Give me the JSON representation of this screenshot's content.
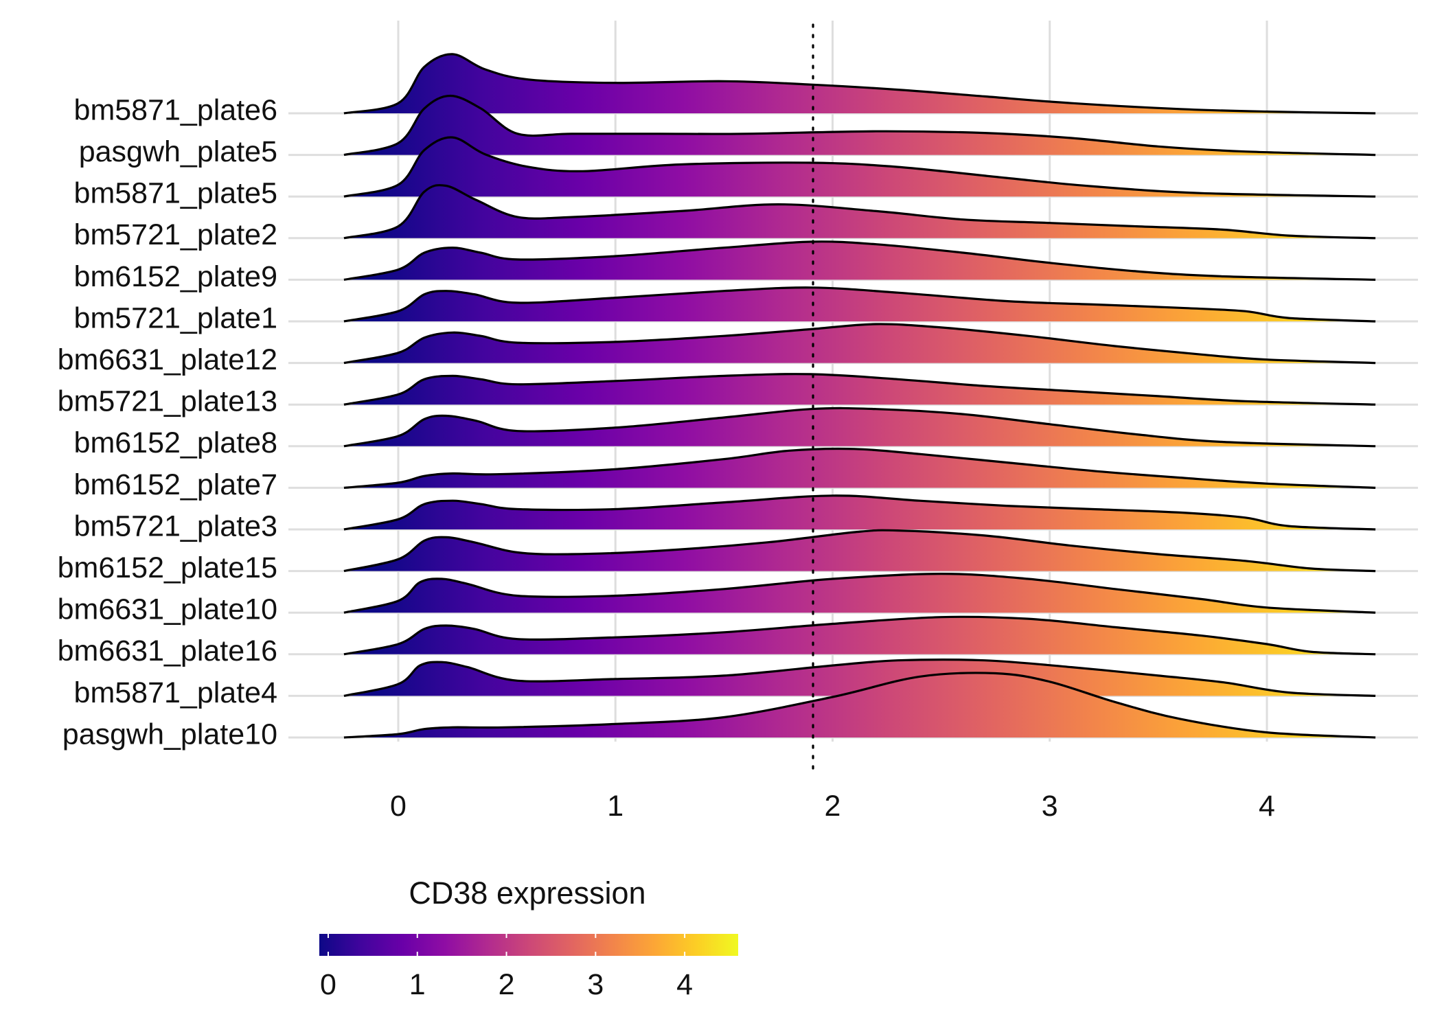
{
  "chart_data": {
    "type": "ridgeline",
    "xlim": [
      -0.25,
      4.5
    ],
    "x_ticks": [
      "0",
      "1",
      "2",
      "3",
      "4"
    ],
    "grid": "vertical + row baselines",
    "reference_line": {
      "x": 1.91,
      "style": "dotted"
    },
    "fill_palette": [
      "#0d0887",
      "#41049d",
      "#6a00a8",
      "#8f0da4",
      "#b12a90",
      "#cc4778",
      "#e16462",
      "#f2844b",
      "#fca636",
      "#fcce25",
      "#f0f921"
    ],
    "legend": {
      "title": "CD38 expression",
      "placement": "bottom",
      "range": [
        -0.1,
        4.6
      ],
      "ticks": [
        "0",
        "1",
        "2",
        "3",
        "4"
      ]
    },
    "series": [
      {
        "name": "bm5871_plate6",
        "points": [
          [
            -0.25,
            0
          ],
          [
            0,
            0.12
          ],
          [
            0.12,
            0.55
          ],
          [
            0.25,
            0.7
          ],
          [
            0.4,
            0.52
          ],
          [
            0.6,
            0.4
          ],
          [
            1.0,
            0.36
          ],
          [
            1.5,
            0.38
          ],
          [
            1.9,
            0.34
          ],
          [
            2.3,
            0.28
          ],
          [
            2.7,
            0.2
          ],
          [
            3.1,
            0.12
          ],
          [
            3.6,
            0.05
          ],
          [
            4.0,
            0.02
          ],
          [
            4.5,
            0.0
          ]
        ]
      },
      {
        "name": "pasgwh_plate5",
        "points": [
          [
            -0.25,
            0
          ],
          [
            0,
            0.14
          ],
          [
            0.12,
            0.55
          ],
          [
            0.24,
            0.7
          ],
          [
            0.38,
            0.55
          ],
          [
            0.55,
            0.25
          ],
          [
            0.8,
            0.25
          ],
          [
            1.2,
            0.25
          ],
          [
            1.6,
            0.25
          ],
          [
            2.2,
            0.28
          ],
          [
            2.7,
            0.26
          ],
          [
            3.1,
            0.2
          ],
          [
            3.5,
            0.1
          ],
          [
            3.9,
            0.04
          ],
          [
            4.5,
            0.0
          ]
        ]
      },
      {
        "name": "bm5871_plate5",
        "points": [
          [
            -0.25,
            0
          ],
          [
            0,
            0.14
          ],
          [
            0.12,
            0.55
          ],
          [
            0.25,
            0.7
          ],
          [
            0.4,
            0.5
          ],
          [
            0.6,
            0.35
          ],
          [
            0.85,
            0.3
          ],
          [
            1.3,
            0.38
          ],
          [
            1.9,
            0.4
          ],
          [
            2.3,
            0.35
          ],
          [
            2.8,
            0.22
          ],
          [
            3.2,
            0.12
          ],
          [
            3.7,
            0.04
          ],
          [
            4.5,
            0.0
          ]
        ]
      },
      {
        "name": "bm5721_plate2",
        "points": [
          [
            -0.25,
            0
          ],
          [
            0,
            0.14
          ],
          [
            0.12,
            0.55
          ],
          [
            0.22,
            0.62
          ],
          [
            0.36,
            0.45
          ],
          [
            0.55,
            0.25
          ],
          [
            0.8,
            0.25
          ],
          [
            1.3,
            0.32
          ],
          [
            1.75,
            0.4
          ],
          [
            2.2,
            0.32
          ],
          [
            2.6,
            0.22
          ],
          [
            3.0,
            0.18
          ],
          [
            3.4,
            0.14
          ],
          [
            3.8,
            0.1
          ],
          [
            4.1,
            0.03
          ],
          [
            4.5,
            0.0
          ]
        ]
      },
      {
        "name": "bm6152_plate9",
        "points": [
          [
            -0.25,
            0
          ],
          [
            0,
            0.12
          ],
          [
            0.12,
            0.32
          ],
          [
            0.25,
            0.38
          ],
          [
            0.38,
            0.32
          ],
          [
            0.55,
            0.24
          ],
          [
            1.0,
            0.28
          ],
          [
            1.5,
            0.38
          ],
          [
            1.9,
            0.45
          ],
          [
            2.2,
            0.42
          ],
          [
            2.6,
            0.32
          ],
          [
            3.0,
            0.2
          ],
          [
            3.4,
            0.1
          ],
          [
            3.8,
            0.04
          ],
          [
            4.5,
            0.0
          ]
        ]
      },
      {
        "name": "bm5721_plate1",
        "points": [
          [
            -0.25,
            0
          ],
          [
            0,
            0.12
          ],
          [
            0.12,
            0.32
          ],
          [
            0.22,
            0.36
          ],
          [
            0.35,
            0.32
          ],
          [
            0.55,
            0.22
          ],
          [
            1.0,
            0.28
          ],
          [
            1.5,
            0.36
          ],
          [
            1.9,
            0.4
          ],
          [
            2.3,
            0.34
          ],
          [
            2.8,
            0.24
          ],
          [
            3.2,
            0.2
          ],
          [
            3.6,
            0.16
          ],
          [
            3.9,
            0.12
          ],
          [
            4.1,
            0.04
          ],
          [
            4.5,
            0.0
          ]
        ]
      },
      {
        "name": "bm6631_plate12",
        "points": [
          [
            -0.25,
            0
          ],
          [
            0,
            0.12
          ],
          [
            0.12,
            0.3
          ],
          [
            0.25,
            0.36
          ],
          [
            0.38,
            0.32
          ],
          [
            0.55,
            0.24
          ],
          [
            1.0,
            0.25
          ],
          [
            1.5,
            0.32
          ],
          [
            1.9,
            0.4
          ],
          [
            2.2,
            0.46
          ],
          [
            2.5,
            0.42
          ],
          [
            2.9,
            0.32
          ],
          [
            3.3,
            0.2
          ],
          [
            3.7,
            0.1
          ],
          [
            4.0,
            0.04
          ],
          [
            4.5,
            0.0
          ]
        ]
      },
      {
        "name": "bm5721_plate13",
        "points": [
          [
            -0.25,
            0
          ],
          [
            0,
            0.12
          ],
          [
            0.12,
            0.3
          ],
          [
            0.25,
            0.34
          ],
          [
            0.38,
            0.3
          ],
          [
            0.55,
            0.24
          ],
          [
            1.0,
            0.28
          ],
          [
            1.5,
            0.34
          ],
          [
            1.9,
            0.36
          ],
          [
            2.3,
            0.3
          ],
          [
            2.7,
            0.22
          ],
          [
            3.1,
            0.16
          ],
          [
            3.5,
            0.1
          ],
          [
            3.9,
            0.04
          ],
          [
            4.5,
            0.0
          ]
        ]
      },
      {
        "name": "bm6152_plate8",
        "points": [
          [
            -0.25,
            0
          ],
          [
            0,
            0.12
          ],
          [
            0.12,
            0.32
          ],
          [
            0.22,
            0.36
          ],
          [
            0.36,
            0.3
          ],
          [
            0.55,
            0.18
          ],
          [
            1.0,
            0.22
          ],
          [
            1.5,
            0.34
          ],
          [
            1.9,
            0.44
          ],
          [
            2.2,
            0.44
          ],
          [
            2.6,
            0.38
          ],
          [
            3.0,
            0.26
          ],
          [
            3.4,
            0.14
          ],
          [
            3.8,
            0.05
          ],
          [
            4.5,
            0.0
          ]
        ]
      },
      {
        "name": "bm6152_plate7",
        "points": [
          [
            -0.25,
            0
          ],
          [
            0,
            0.06
          ],
          [
            0.12,
            0.14
          ],
          [
            0.25,
            0.17
          ],
          [
            0.45,
            0.16
          ],
          [
            1.0,
            0.22
          ],
          [
            1.5,
            0.34
          ],
          [
            1.8,
            0.44
          ],
          [
            2.1,
            0.46
          ],
          [
            2.4,
            0.4
          ],
          [
            2.8,
            0.3
          ],
          [
            3.2,
            0.2
          ],
          [
            3.6,
            0.12
          ],
          [
            4.0,
            0.05
          ],
          [
            4.5,
            0.0
          ]
        ]
      },
      {
        "name": "bm5721_plate3",
        "points": [
          [
            -0.25,
            0
          ],
          [
            0,
            0.12
          ],
          [
            0.12,
            0.3
          ],
          [
            0.25,
            0.34
          ],
          [
            0.38,
            0.3
          ],
          [
            0.55,
            0.24
          ],
          [
            1.0,
            0.24
          ],
          [
            1.5,
            0.32
          ],
          [
            2.0,
            0.4
          ],
          [
            2.4,
            0.34
          ],
          [
            2.8,
            0.28
          ],
          [
            3.2,
            0.24
          ],
          [
            3.6,
            0.2
          ],
          [
            3.9,
            0.14
          ],
          [
            4.1,
            0.04
          ],
          [
            4.5,
            0.0
          ]
        ]
      },
      {
        "name": "bm6152_plate15",
        "points": [
          [
            -0.25,
            0
          ],
          [
            0,
            0.14
          ],
          [
            0.12,
            0.36
          ],
          [
            0.22,
            0.4
          ],
          [
            0.35,
            0.34
          ],
          [
            0.55,
            0.22
          ],
          [
            0.8,
            0.2
          ],
          [
            1.2,
            0.24
          ],
          [
            1.7,
            0.34
          ],
          [
            2.1,
            0.46
          ],
          [
            2.3,
            0.48
          ],
          [
            2.7,
            0.42
          ],
          [
            3.1,
            0.3
          ],
          [
            3.5,
            0.2
          ],
          [
            3.9,
            0.12
          ],
          [
            4.2,
            0.03
          ],
          [
            4.5,
            0.0
          ]
        ]
      },
      {
        "name": "bm6631_plate10",
        "points": [
          [
            -0.25,
            0
          ],
          [
            0,
            0.14
          ],
          [
            0.1,
            0.36
          ],
          [
            0.2,
            0.4
          ],
          [
            0.32,
            0.34
          ],
          [
            0.55,
            0.2
          ],
          [
            1.0,
            0.2
          ],
          [
            1.5,
            0.28
          ],
          [
            2.0,
            0.4
          ],
          [
            2.5,
            0.46
          ],
          [
            2.9,
            0.4
          ],
          [
            3.3,
            0.28
          ],
          [
            3.7,
            0.16
          ],
          [
            4.0,
            0.06
          ],
          [
            4.5,
            0.0
          ]
        ]
      },
      {
        "name": "bm6631_plate16",
        "points": [
          [
            -0.25,
            0
          ],
          [
            0,
            0.12
          ],
          [
            0.12,
            0.3
          ],
          [
            0.22,
            0.34
          ],
          [
            0.35,
            0.3
          ],
          [
            0.55,
            0.18
          ],
          [
            1.0,
            0.2
          ],
          [
            1.5,
            0.26
          ],
          [
            2.0,
            0.36
          ],
          [
            2.5,
            0.44
          ],
          [
            2.9,
            0.42
          ],
          [
            3.3,
            0.32
          ],
          [
            3.7,
            0.22
          ],
          [
            4.0,
            0.12
          ],
          [
            4.2,
            0.03
          ],
          [
            4.5,
            0.0
          ]
        ]
      },
      {
        "name": "bm5871_plate4",
        "points": [
          [
            -0.25,
            0
          ],
          [
            0,
            0.14
          ],
          [
            0.1,
            0.36
          ],
          [
            0.2,
            0.4
          ],
          [
            0.32,
            0.34
          ],
          [
            0.55,
            0.18
          ],
          [
            1.0,
            0.2
          ],
          [
            1.5,
            0.24
          ],
          [
            2.0,
            0.36
          ],
          [
            2.3,
            0.42
          ],
          [
            2.7,
            0.42
          ],
          [
            3.1,
            0.34
          ],
          [
            3.5,
            0.24
          ],
          [
            3.8,
            0.16
          ],
          [
            4.1,
            0.04
          ],
          [
            4.5,
            0.0
          ]
        ]
      },
      {
        "name": "pasgwh_plate10",
        "points": [
          [
            -0.25,
            0
          ],
          [
            0,
            0.04
          ],
          [
            0.12,
            0.1
          ],
          [
            0.25,
            0.12
          ],
          [
            0.5,
            0.12
          ],
          [
            1.0,
            0.16
          ],
          [
            1.5,
            0.24
          ],
          [
            2.0,
            0.48
          ],
          [
            2.4,
            0.72
          ],
          [
            2.75,
            0.76
          ],
          [
            3.0,
            0.66
          ],
          [
            3.3,
            0.42
          ],
          [
            3.6,
            0.22
          ],
          [
            4.0,
            0.06
          ],
          [
            4.5,
            0.0
          ]
        ]
      }
    ]
  }
}
